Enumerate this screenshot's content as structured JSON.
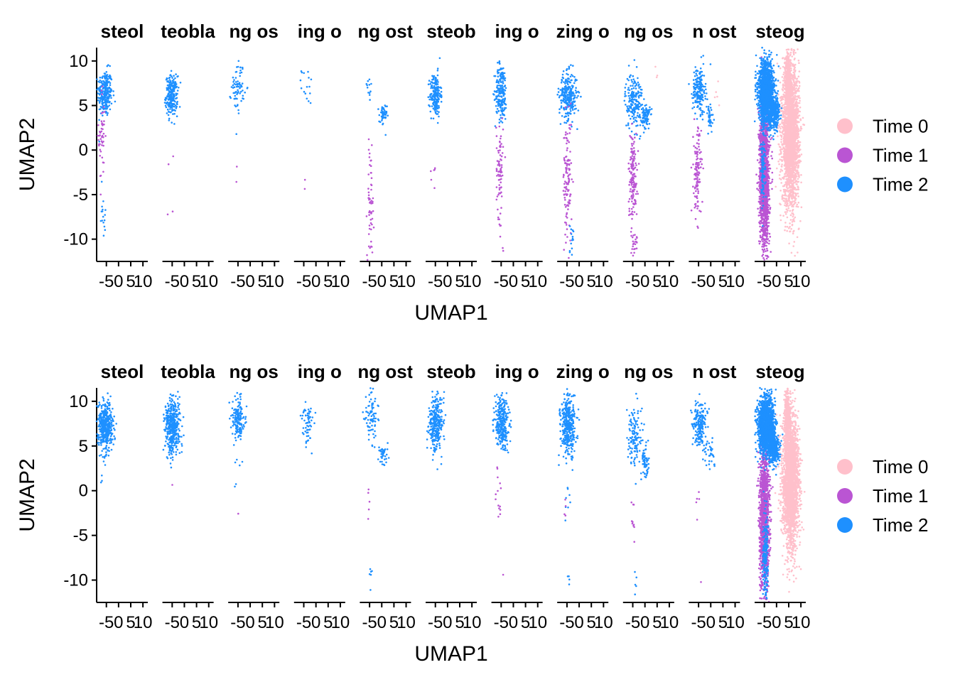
{
  "chart_data": [
    {
      "type": "scatter",
      "title": "",
      "xlabel": "UMAP1",
      "ylabel": "UMAP2",
      "xlim": [
        -9,
        12
      ],
      "ylim": [
        -12.5,
        11.5
      ],
      "x_ticks": [
        -5,
        0,
        5,
        10
      ],
      "x_tick_labels": [
        "-5",
        "0",
        "5",
        "10"
      ],
      "y_ticks": [
        -10,
        -5,
        0,
        5,
        10
      ],
      "y_tick_labels": [
        "-10",
        "-5",
        "0",
        "5",
        "10"
      ],
      "grid": false,
      "legend": {
        "position": "right",
        "entries": [
          "Time 0",
          "Time 1",
          "Time 2"
        ]
      },
      "colors": {
        "Time 0": "#FFC0CB",
        "Time 1": "#BA55D3",
        "Time 2": "#1E90FF"
      },
      "facets": [
        {
          "label": "steol",
          "regions": [
            {
              "series": "Time 2",
              "cx": -5.6,
              "cy": 6.4,
              "sx": 1.5,
              "sy": 1.3,
              "n": 260
            },
            {
              "series": "Time 1",
              "cx": -6.8,
              "cy": 1.5,
              "sx": 0.7,
              "sy": 2.8,
              "n": 50
            },
            {
              "series": "Time 2",
              "cx": -6.2,
              "cy": -6.5,
              "sx": 0.8,
              "sy": 2.0,
              "n": 16
            }
          ]
        },
        {
          "label": "teobla",
          "regions": [
            {
              "series": "Time 2",
              "cx": -5.2,
              "cy": 6.1,
              "sx": 1.2,
              "sy": 1.1,
              "n": 240
            },
            {
              "series": "Time 1",
              "cx": -5.6,
              "cy": -2.5,
              "sx": 0.6,
              "sy": 2.5,
              "n": 4
            }
          ]
        },
        {
          "label": "ng os",
          "regions": [
            {
              "series": "Time 2",
              "cx": -5.0,
              "cy": 7.2,
              "sx": 1.3,
              "sy": 1.4,
              "n": 70
            },
            {
              "series": "Time 1",
              "cx": -5.6,
              "cy": -2.5,
              "sx": 0.5,
              "sy": 1.0,
              "n": 2
            }
          ]
        },
        {
          "label": "ing o",
          "regions": [
            {
              "series": "Time 2",
              "cx": -3.5,
              "cy": 7.2,
              "sx": 1.2,
              "sy": 1.0,
              "n": 16
            },
            {
              "series": "Time 1",
              "cx": -4.5,
              "cy": -3.5,
              "sx": 0.4,
              "sy": 1.2,
              "n": 2
            }
          ]
        },
        {
          "label": "ng ost",
          "regions": [
            {
              "series": "Time 2",
              "cx": 0.5,
              "cy": 3.8,
              "sx": 0.8,
              "sy": 0.7,
              "n": 45
            },
            {
              "series": "Time 2",
              "cx": -5.3,
              "cy": 7.0,
              "sx": 0.9,
              "sy": 0.9,
              "n": 12
            },
            {
              "series": "Time 1",
              "cx": -4.6,
              "cy": -6.0,
              "sx": 0.7,
              "sy": 3.0,
              "n": 60
            }
          ]
        },
        {
          "label": "steob",
          "regions": [
            {
              "series": "Time 2",
              "cx": -5.0,
              "cy": 6.2,
              "sx": 1.1,
              "sy": 1.2,
              "n": 200
            },
            {
              "series": "Time 1",
              "cx": -5.3,
              "cy": -2.8,
              "sx": 0.5,
              "sy": 1.8,
              "n": 6
            }
          ]
        },
        {
          "label": "ing o",
          "regions": [
            {
              "series": "Time 2",
              "cx": -5.0,
              "cy": 6.5,
              "sx": 1.2,
              "sy": 1.6,
              "n": 200
            },
            {
              "series": "Time 1",
              "cx": -5.6,
              "cy": -2.0,
              "sx": 0.7,
              "sy": 2.8,
              "n": 80
            },
            {
              "series": "Time 1",
              "cx": -4.2,
              "cy": -10.5,
              "sx": 0.5,
              "sy": 0.8,
              "n": 3
            }
          ]
        },
        {
          "label": "zing o",
          "regions": [
            {
              "series": "Time 2",
              "cx": -4.5,
              "cy": 6.1,
              "sx": 1.8,
              "sy": 1.3,
              "n": 280
            },
            {
              "series": "Time 1",
              "cx": -4.8,
              "cy": -3.5,
              "sx": 0.9,
              "sy": 3.5,
              "n": 120
            },
            {
              "series": "Time 2",
              "cx": -3.3,
              "cy": -10.0,
              "sx": 0.5,
              "sy": 0.9,
              "n": 14
            }
          ]
        },
        {
          "label": "ng os",
          "regions": [
            {
              "series": "Time 2",
              "cx": -4.5,
              "cy": 5.5,
              "sx": 1.8,
              "sy": 1.6,
              "n": 200
            },
            {
              "series": "Time 2",
              "cx": 0.5,
              "cy": 3.8,
              "sx": 0.8,
              "sy": 0.7,
              "n": 90
            },
            {
              "series": "Time 1",
              "cx": -5.0,
              "cy": -3.0,
              "sx": 0.9,
              "sy": 2.5,
              "n": 160
            },
            {
              "series": "Time 1",
              "cx": -4.0,
              "cy": -10.5,
              "sx": 0.6,
              "sy": 0.6,
              "n": 20
            },
            {
              "series": "Time 0",
              "cx": 4.5,
              "cy": 8.7,
              "sx": 0.3,
              "sy": 0.3,
              "n": 3
            }
          ]
        },
        {
          "label": "n ost",
          "regions": [
            {
              "series": "Time 2",
              "cx": -4.8,
              "cy": 6.8,
              "sx": 1.3,
              "sy": 1.3,
              "n": 200
            },
            {
              "series": "Time 2",
              "cx": -0.5,
              "cy": 3.5,
              "sx": 0.8,
              "sy": 0.9,
              "n": 40
            },
            {
              "series": "Time 1",
              "cx": -5.5,
              "cy": -2.5,
              "sx": 0.8,
              "sy": 2.5,
              "n": 120
            },
            {
              "series": "Time 0",
              "cx": 2.5,
              "cy": 5.5,
              "sx": 0.6,
              "sy": 1.5,
              "n": 5
            }
          ]
        },
        {
          "label": "steog",
          "regions": [
            {
              "series": "Time 0",
              "cx": 5.8,
              "cy": 1.5,
              "sx": 1.7,
              "sy": 3.8,
              "n": 2600
            },
            {
              "series": "Time 0",
              "cx": 4.5,
              "cy": 8.0,
              "sx": 0.5,
              "sy": 1.6,
              "n": 400
            },
            {
              "series": "Time 1",
              "cx": -5.0,
              "cy": -3.0,
              "sx": 1.0,
              "sy": 4.0,
              "n": 1500
            },
            {
              "series": "Time 2",
              "cx": -4.3,
              "cy": 6.5,
              "sx": 1.6,
              "sy": 1.7,
              "n": 1500
            },
            {
              "series": "Time 2",
              "cx": -1.0,
              "cy": 4.3,
              "sx": 1.1,
              "sy": 0.9,
              "n": 350
            },
            {
              "series": "Time 2",
              "cx": -5.5,
              "cy": -1.5,
              "sx": 0.5,
              "sy": 2.5,
              "n": 120
            }
          ]
        }
      ]
    },
    {
      "type": "scatter",
      "title": "",
      "xlabel": "UMAP1",
      "ylabel": "UMAP2",
      "xlim": [
        -9,
        12
      ],
      "ylim": [
        -12.5,
        11.5
      ],
      "x_ticks": [
        -5,
        0,
        5,
        10
      ],
      "x_tick_labels": [
        "-5",
        "0",
        "5",
        "10"
      ],
      "y_ticks": [
        -10,
        -5,
        0,
        5,
        10
      ],
      "y_tick_labels": [
        "-10",
        "-5",
        "0",
        "5",
        "10"
      ],
      "grid": false,
      "legend": {
        "position": "right",
        "entries": [
          "Time 0",
          "Time 1",
          "Time 2"
        ]
      },
      "colors": {
        "Time 0": "#FFC0CB",
        "Time 1": "#BA55D3",
        "Time 2": "#1E90FF"
      },
      "facets": [
        {
          "label": "steol",
          "regions": [
            {
              "series": "Time 2",
              "cx": -5.5,
              "cy": 7.2,
              "sx": 1.6,
              "sy": 1.4,
              "n": 420
            },
            {
              "series": "Time 2",
              "cx": -6.8,
              "cy": 1.0,
              "sx": 0.4,
              "sy": 0.5,
              "n": 3
            }
          ]
        },
        {
          "label": "teobla",
          "regions": [
            {
              "series": "Time 2",
              "cx": -4.8,
              "cy": 7.2,
              "sx": 1.5,
              "sy": 1.5,
              "n": 420
            },
            {
              "series": "Time 1",
              "cx": -5.0,
              "cy": 0.8,
              "sx": 0.2,
              "sy": 0.2,
              "n": 1
            }
          ]
        },
        {
          "label": "ng os",
          "regions": [
            {
              "series": "Time 2",
              "cx": -4.8,
              "cy": 8.0,
              "sx": 1.2,
              "sy": 1.3,
              "n": 160
            },
            {
              "series": "Time 2",
              "cx": -5.5,
              "cy": 2.5,
              "sx": 0.4,
              "sy": 1.5,
              "n": 3
            },
            {
              "series": "Time 1",
              "cx": -5.0,
              "cy": -2.7,
              "sx": 0.2,
              "sy": 0.2,
              "n": 1
            }
          ]
        },
        {
          "label": "ing o",
          "regions": [
            {
              "series": "Time 2",
              "cx": -3.5,
              "cy": 7.8,
              "sx": 1.3,
              "sy": 1.3,
              "n": 60
            }
          ]
        },
        {
          "label": "ng ost",
          "regions": [
            {
              "series": "Time 2",
              "cx": -4.3,
              "cy": 8.3,
              "sx": 1.3,
              "sy": 1.5,
              "n": 80
            },
            {
              "series": "Time 2",
              "cx": 0.5,
              "cy": 4.0,
              "sx": 0.9,
              "sy": 0.6,
              "n": 40
            },
            {
              "series": "Time 1",
              "cx": -5.5,
              "cy": -1.5,
              "sx": 0.6,
              "sy": 1.0,
              "n": 5
            },
            {
              "series": "Time 2",
              "cx": -4.5,
              "cy": -9.4,
              "sx": 0.4,
              "sy": 0.6,
              "n": 6
            }
          ]
        },
        {
          "label": "steob",
          "regions": [
            {
              "series": "Time 2",
              "cx": -4.8,
              "cy": 7.5,
              "sx": 1.4,
              "sy": 1.5,
              "n": 300
            }
          ]
        },
        {
          "label": "ing o",
          "regions": [
            {
              "series": "Time 2",
              "cx": -4.8,
              "cy": 7.6,
              "sx": 1.5,
              "sy": 1.5,
              "n": 300
            },
            {
              "series": "Time 1",
              "cx": -5.8,
              "cy": -1.5,
              "sx": 0.6,
              "sy": 2.5,
              "n": 14
            },
            {
              "series": "Time 1",
              "cx": -4.0,
              "cy": -9.2,
              "sx": 0.2,
              "sy": 0.2,
              "n": 1
            }
          ]
        },
        {
          "label": "zing o",
          "regions": [
            {
              "series": "Time 2",
              "cx": -4.5,
              "cy": 7.3,
              "sx": 1.5,
              "sy": 1.6,
              "n": 360
            },
            {
              "series": "Time 2",
              "cx": -5.0,
              "cy": -1.0,
              "sx": 0.8,
              "sy": 1.0,
              "n": 8
            },
            {
              "series": "Time 1",
              "cx": -5.5,
              "cy": -2.0,
              "sx": 0.6,
              "sy": 1.5,
              "n": 4
            },
            {
              "series": "Time 2",
              "cx": -4.3,
              "cy": -10.0,
              "sx": 0.3,
              "sy": 0.5,
              "n": 4
            }
          ]
        },
        {
          "label": "ng os",
          "regions": [
            {
              "series": "Time 2",
              "cx": -4.5,
              "cy": 6.0,
              "sx": 1.5,
              "sy": 1.8,
              "n": 120
            },
            {
              "series": "Time 2",
              "cx": 0.0,
              "cy": 3.2,
              "sx": 0.8,
              "sy": 0.9,
              "n": 60
            },
            {
              "series": "Time 1",
              "cx": -5.0,
              "cy": -3.0,
              "sx": 0.6,
              "sy": 1.5,
              "n": 10
            },
            {
              "series": "Time 2",
              "cx": -3.5,
              "cy": -9.5,
              "sx": 0.5,
              "sy": 1.0,
              "n": 5
            }
          ]
        },
        {
          "label": "n ost",
          "regions": [
            {
              "series": "Time 2",
              "cx": -4.5,
              "cy": 7.5,
              "sx": 1.4,
              "sy": 1.2,
              "n": 180
            },
            {
              "series": "Time 2",
              "cx": -0.5,
              "cy": 4.5,
              "sx": 1.2,
              "sy": 0.8,
              "n": 40
            },
            {
              "series": "Time 1",
              "cx": -5.3,
              "cy": -1.5,
              "sx": 0.4,
              "sy": 1.0,
              "n": 5
            },
            {
              "series": "Time 1",
              "cx": -4.0,
              "cy": -10.2,
              "sx": 0.2,
              "sy": 0.2,
              "n": 1
            }
          ]
        },
        {
          "label": "steog",
          "regions": [
            {
              "series": "Time 0",
              "cx": 5.8,
              "cy": 1.0,
              "sx": 1.7,
              "sy": 3.6,
              "n": 2600
            },
            {
              "series": "Time 0",
              "cx": 4.5,
              "cy": 8.3,
              "sx": 0.5,
              "sy": 1.5,
              "n": 400
            },
            {
              "series": "Time 1",
              "cx": -5.0,
              "cy": -2.8,
              "sx": 1.0,
              "sy": 3.8,
              "n": 1300
            },
            {
              "series": "Time 2",
              "cx": -4.3,
              "cy": 7.3,
              "sx": 1.6,
              "sy": 1.6,
              "n": 1700
            },
            {
              "series": "Time 2",
              "cx": -1.0,
              "cy": 4.6,
              "sx": 1.1,
              "sy": 0.8,
              "n": 350
            },
            {
              "series": "Time 2",
              "cx": -4.6,
              "cy": -7.5,
              "sx": 0.5,
              "sy": 2.5,
              "n": 200
            }
          ]
        }
      ]
    }
  ]
}
